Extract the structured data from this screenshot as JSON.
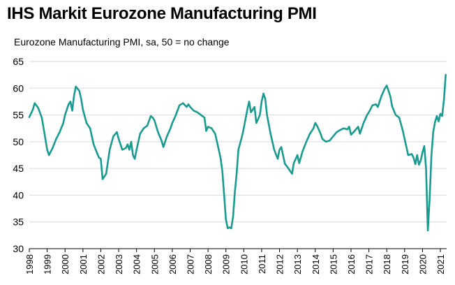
{
  "chart_data": {
    "type": "line",
    "title": "IHS Markit Eurozone Manufacturing PMI",
    "subtitle": "Eurozone Manufacturing PMI, sa, 50 = no change",
    "xlabel": "",
    "ylabel": "",
    "ylim": [
      30,
      65
    ],
    "yticks": [
      30,
      35,
      40,
      45,
      50,
      55,
      60,
      65
    ],
    "xlim": [
      1998.0,
      2021.35
    ],
    "xticks": [
      "1998",
      "1999",
      "2000",
      "2001",
      "2002",
      "2003",
      "2004",
      "2005",
      "2006",
      "2007",
      "2008",
      "2009",
      "2010",
      "2011",
      "2012",
      "2013",
      "2014",
      "2015",
      "2016",
      "2017",
      "2018",
      "2019",
      "2020",
      "2021"
    ],
    "grid": "horizontal",
    "line_color": "#1a9b8f",
    "series": [
      {
        "name": "",
        "points": [
          [
            1998.0,
            54.6
          ],
          [
            1998.2,
            56.0
          ],
          [
            1998.3,
            57.2
          ],
          [
            1998.5,
            56.3
          ],
          [
            1998.7,
            54.5
          ],
          [
            1998.8,
            52.5
          ],
          [
            1999.0,
            48.5
          ],
          [
            1999.1,
            47.5
          ],
          [
            1999.3,
            48.8
          ],
          [
            1999.5,
            50.5
          ],
          [
            1999.7,
            51.8
          ],
          [
            1999.9,
            53.5
          ],
          [
            2000.0,
            55.0
          ],
          [
            2000.2,
            57.0
          ],
          [
            2000.3,
            57.5
          ],
          [
            2000.4,
            55.8
          ],
          [
            2000.5,
            58.5
          ],
          [
            2000.6,
            60.3
          ],
          [
            2000.8,
            59.5
          ],
          [
            2000.9,
            58.0
          ],
          [
            2001.0,
            56.0
          ],
          [
            2001.2,
            53.5
          ],
          [
            2001.4,
            52.5
          ],
          [
            2001.6,
            49.5
          ],
          [
            2001.8,
            47.8
          ],
          [
            2001.9,
            47.0
          ],
          [
            2002.0,
            46.8
          ],
          [
            2002.1,
            43.0
          ],
          [
            2002.3,
            44.0
          ],
          [
            2002.5,
            48.5
          ],
          [
            2002.7,
            51.0
          ],
          [
            2002.9,
            51.8
          ],
          [
            2003.0,
            50.5
          ],
          [
            2003.2,
            48.5
          ],
          [
            2003.4,
            48.8
          ],
          [
            2003.5,
            49.5
          ],
          [
            2003.6,
            48.5
          ],
          [
            2003.7,
            50.0
          ],
          [
            2003.8,
            47.5
          ],
          [
            2003.9,
            46.8
          ],
          [
            2004.0,
            48.5
          ],
          [
            2004.2,
            51.5
          ],
          [
            2004.4,
            52.5
          ],
          [
            2004.6,
            53.0
          ],
          [
            2004.8,
            54.8
          ],
          [
            2004.9,
            54.5
          ],
          [
            2005.0,
            54.0
          ],
          [
            2005.2,
            51.8
          ],
          [
            2005.4,
            50.2
          ],
          [
            2005.5,
            49.0
          ],
          [
            2005.7,
            51.0
          ],
          [
            2005.9,
            52.5
          ],
          [
            2006.0,
            53.5
          ],
          [
            2006.2,
            55.0
          ],
          [
            2006.4,
            56.8
          ],
          [
            2006.6,
            57.2
          ],
          [
            2006.8,
            56.5
          ],
          [
            2006.9,
            57.0
          ],
          [
            2007.0,
            56.5
          ],
          [
            2007.2,
            55.8
          ],
          [
            2007.4,
            55.5
          ],
          [
            2007.6,
            55.0
          ],
          [
            2007.8,
            54.5
          ],
          [
            2007.9,
            52.0
          ],
          [
            2008.0,
            52.8
          ],
          [
            2008.2,
            52.5
          ],
          [
            2008.4,
            51.5
          ],
          [
            2008.5,
            50.0
          ],
          [
            2008.7,
            47.0
          ],
          [
            2008.8,
            44.5
          ],
          [
            2008.9,
            40.0
          ],
          [
            2009.0,
            35.5
          ],
          [
            2009.1,
            33.8
          ],
          [
            2009.2,
            34.0
          ],
          [
            2009.3,
            33.8
          ],
          [
            2009.4,
            36.0
          ],
          [
            2009.5,
            40.5
          ],
          [
            2009.6,
            44.0
          ],
          [
            2009.7,
            48.5
          ],
          [
            2009.9,
            51.0
          ],
          [
            2010.0,
            52.5
          ],
          [
            2010.2,
            56.0
          ],
          [
            2010.3,
            57.5
          ],
          [
            2010.4,
            55.5
          ],
          [
            2010.6,
            56.5
          ],
          [
            2010.7,
            53.5
          ],
          [
            2010.9,
            55.0
          ],
          [
            2011.0,
            57.5
          ],
          [
            2011.1,
            59.0
          ],
          [
            2011.2,
            58.0
          ],
          [
            2011.3,
            55.0
          ],
          [
            2011.5,
            51.5
          ],
          [
            2011.7,
            48.5
          ],
          [
            2011.9,
            46.8
          ],
          [
            2012.0,
            48.5
          ],
          [
            2012.1,
            49.0
          ],
          [
            2012.3,
            45.9
          ],
          [
            2012.5,
            45.0
          ],
          [
            2012.7,
            44.0
          ],
          [
            2012.8,
            46.0
          ],
          [
            2013.0,
            47.5
          ],
          [
            2013.1,
            46.0
          ],
          [
            2013.3,
            48.3
          ],
          [
            2013.5,
            50.0
          ],
          [
            2013.7,
            51.5
          ],
          [
            2013.9,
            52.5
          ],
          [
            2014.0,
            53.5
          ],
          [
            2014.1,
            53.0
          ],
          [
            2014.3,
            51.5
          ],
          [
            2014.4,
            50.5
          ],
          [
            2014.6,
            50.0
          ],
          [
            2014.8,
            50.2
          ],
          [
            2015.0,
            51.0
          ],
          [
            2015.2,
            51.8
          ],
          [
            2015.4,
            52.2
          ],
          [
            2015.6,
            52.5
          ],
          [
            2015.8,
            52.3
          ],
          [
            2015.9,
            52.8
          ],
          [
            2016.0,
            51.3
          ],
          [
            2016.2,
            52.0
          ],
          [
            2016.4,
            52.8
          ],
          [
            2016.5,
            51.5
          ],
          [
            2016.7,
            53.5
          ],
          [
            2016.9,
            55.0
          ],
          [
            2017.0,
            55.5
          ],
          [
            2017.2,
            56.8
          ],
          [
            2017.4,
            57.0
          ],
          [
            2017.5,
            56.5
          ],
          [
            2017.7,
            58.5
          ],
          [
            2017.9,
            60.0
          ],
          [
            2018.0,
            60.5
          ],
          [
            2018.2,
            58.5
          ],
          [
            2018.3,
            56.6
          ],
          [
            2018.5,
            55.0
          ],
          [
            2018.7,
            54.5
          ],
          [
            2018.9,
            52.0
          ],
          [
            2019.0,
            50.5
          ],
          [
            2019.1,
            49.0
          ],
          [
            2019.2,
            47.5
          ],
          [
            2019.4,
            47.7
          ],
          [
            2019.5,
            47.0
          ],
          [
            2019.6,
            45.8
          ],
          [
            2019.7,
            47.5
          ],
          [
            2019.8,
            45.7
          ],
          [
            2019.9,
            46.5
          ],
          [
            2020.0,
            48.0
          ],
          [
            2020.1,
            49.2
          ],
          [
            2020.2,
            45.0
          ],
          [
            2020.3,
            33.4
          ],
          [
            2020.4,
            39.5
          ],
          [
            2020.5,
            47.4
          ],
          [
            2020.6,
            51.8
          ],
          [
            2020.7,
            53.7
          ],
          [
            2020.8,
            54.8
          ],
          [
            2020.9,
            53.8
          ],
          [
            2021.0,
            55.2
          ],
          [
            2021.1,
            54.8
          ],
          [
            2021.2,
            57.9
          ],
          [
            2021.3,
            62.5
          ]
        ]
      }
    ]
  }
}
